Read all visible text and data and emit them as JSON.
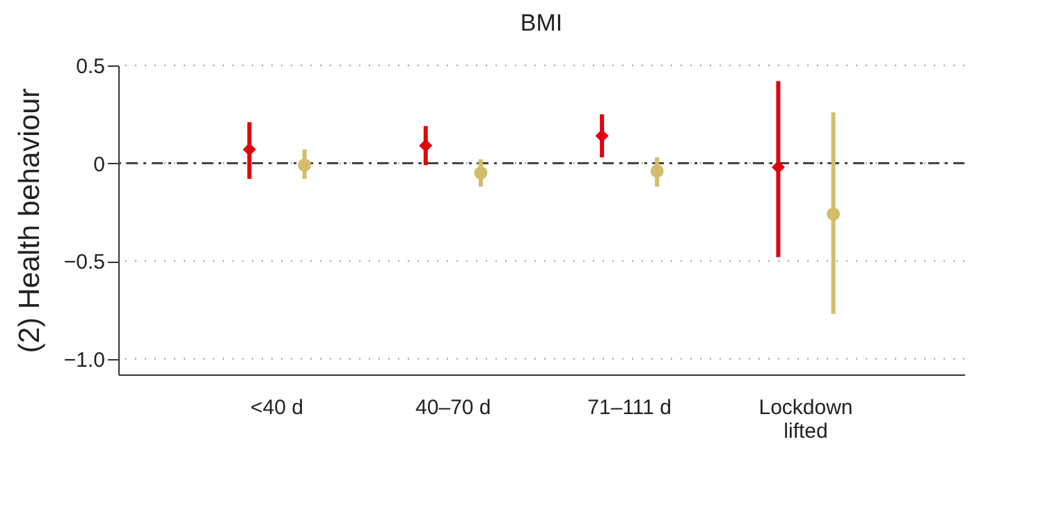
{
  "chart_data": {
    "type": "scatter",
    "title": "BMI",
    "ylabel": "(2) Health behaviour",
    "categories": [
      "<40 d",
      "40–70 d",
      "71–111 d",
      "Lockdown lifted"
    ],
    "series": [
      {
        "color": "#e3000f",
        "marker": "diamond",
        "values": [
          0.07,
          0.09,
          0.14,
          -0.02
        ],
        "errors": [
          [
            -0.08,
            0.21
          ],
          [
            -0.01,
            0.19
          ],
          [
            0.03,
            0.25
          ],
          [
            -0.48,
            0.42
          ]
        ]
      },
      {
        "color": "#d4bd6a",
        "marker": "circle",
        "values": [
          -0.01,
          -0.05,
          -0.04,
          -0.26
        ],
        "errors": [
          [
            -0.08,
            0.07
          ],
          [
            -0.12,
            0.02
          ],
          [
            -0.12,
            0.03
          ],
          [
            -0.77,
            0.26
          ]
        ]
      }
    ],
    "ylim": [
      -1.08,
      0.5
    ],
    "yticks": [
      0.5,
      {
        "value": 0,
        "label": "0"
      },
      {
        "value": -0.5,
        "label": "−0.5"
      },
      {
        "value": -1,
        "label": "−1.0"
      }
    ],
    "grid": "y",
    "legend": false,
    "ref_lines": [
      {
        "axis": "y",
        "value": 0,
        "color": "#444444",
        "line_style": "dashed"
      }
    ]
  }
}
